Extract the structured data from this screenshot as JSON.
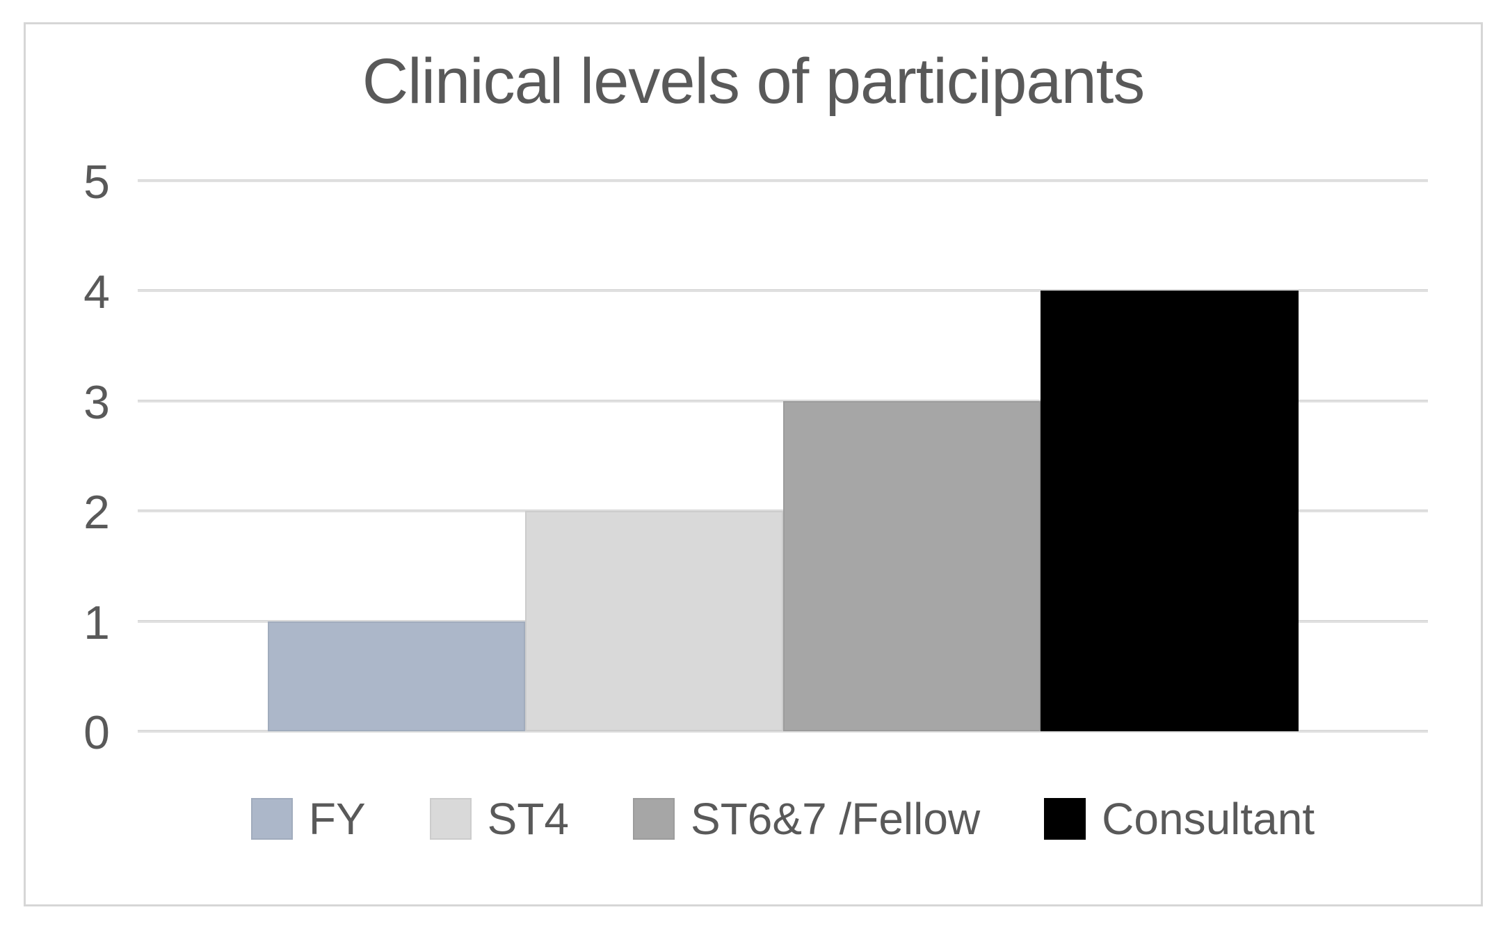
{
  "chart": {
    "title": "Clinical levels of participants"
  },
  "chart_data": {
    "type": "bar",
    "title": "Clinical levels of participants",
    "categories": [
      "FY",
      "ST4",
      "ST6&7 /Fellow",
      "Consultant"
    ],
    "values": [
      1,
      2,
      3,
      4
    ],
    "bar_colors": [
      "#ACB7C9",
      "#D9D9D9",
      "#A6A6A6",
      "#000000"
    ],
    "xlabel": "",
    "ylabel": "",
    "ylim": [
      0,
      5
    ],
    "yticks": [
      0,
      1,
      2,
      3,
      4,
      5
    ],
    "grid": "horizontal",
    "legend_position": "bottom",
    "legend": [
      {
        "label": "FY",
        "color": "#ACB7C9"
      },
      {
        "label": "ST4",
        "color": "#D9D9D9"
      },
      {
        "label": "ST6&7 /Fellow",
        "color": "#A6A6A6"
      },
      {
        "label": "Consultant",
        "color": "#000000"
      }
    ],
    "style_colors": {
      "text": "#595959",
      "gridline": "#E0E0E0",
      "chart_border": "#D6D6D6",
      "background": "#FFFFFF"
    }
  }
}
